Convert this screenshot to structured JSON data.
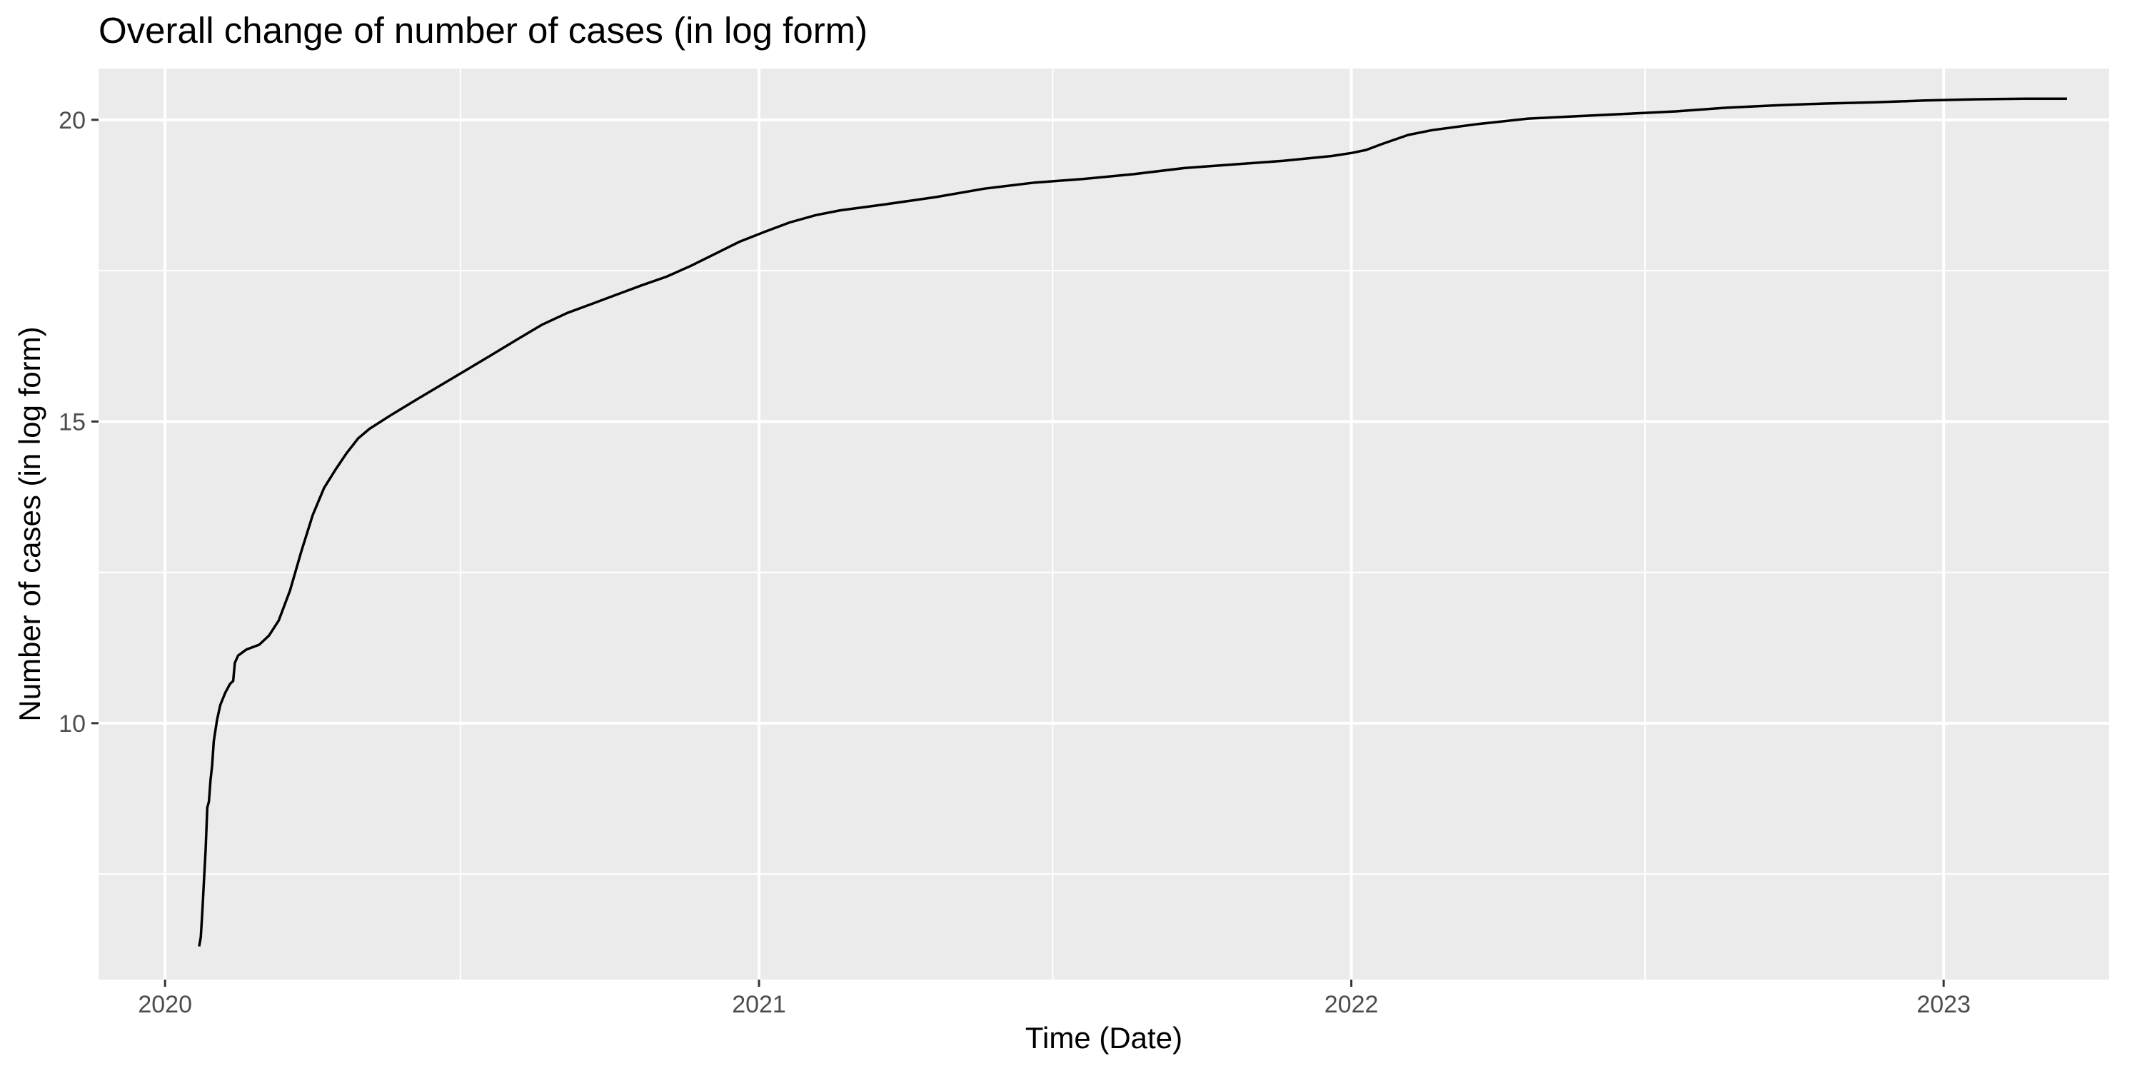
{
  "chart_data": {
    "type": "line",
    "title": "Overall change of number of cases (in log form)",
    "xlabel": "Time (Date)",
    "ylabel": "Number of cases (in log form)",
    "x_axis_type": "date",
    "xlim": [
      "2019-11-21",
      "2023-04-13"
    ],
    "ylim": [
      5.75,
      20.85
    ],
    "x_ticks": [
      {
        "value": "2020-01-01",
        "label": "2020"
      },
      {
        "value": "2021-01-01",
        "label": "2021"
      },
      {
        "value": "2022-01-01",
        "label": "2022"
      },
      {
        "value": "2023-01-01",
        "label": "2023"
      }
    ],
    "x_minor_gridlines": [
      "2020-07-01",
      "2021-07-01",
      "2022-07-01"
    ],
    "y_ticks": [
      {
        "value": 10,
        "label": "10"
      },
      {
        "value": 15,
        "label": "15"
      },
      {
        "value": 20,
        "label": "20"
      }
    ],
    "y_minor_gridlines": [
      7.5,
      12.5,
      17.5
    ],
    "grid": true,
    "legend": "none",
    "colors": {
      "panel": "#ebebeb",
      "grid": "#ffffff",
      "line": "#000000",
      "tick_text": "#4d4d4d",
      "tick_mark": "#333333"
    },
    "series": [
      {
        "points": [
          [
            "2020-01-22",
            6.3
          ],
          [
            "2020-01-23",
            6.45
          ],
          [
            "2020-01-24",
            6.9
          ],
          [
            "2020-01-25",
            7.4
          ],
          [
            "2020-01-26",
            7.9
          ],
          [
            "2020-01-27",
            8.6
          ],
          [
            "2020-01-28",
            8.7
          ],
          [
            "2020-01-29",
            9.05
          ],
          [
            "2020-01-30",
            9.3
          ],
          [
            "2020-01-31",
            9.7
          ],
          [
            "2020-02-02",
            10.05
          ],
          [
            "2020-02-04",
            10.3
          ],
          [
            "2020-02-07",
            10.5
          ],
          [
            "2020-02-10",
            10.65
          ],
          [
            "2020-02-12",
            10.7
          ],
          [
            "2020-02-13",
            11.0
          ],
          [
            "2020-02-15",
            11.12
          ],
          [
            "2020-02-20",
            11.22
          ],
          [
            "2020-02-28",
            11.3
          ],
          [
            "2020-03-05",
            11.45
          ],
          [
            "2020-03-11",
            11.7
          ],
          [
            "2020-03-18",
            12.2
          ],
          [
            "2020-03-25",
            12.85
          ],
          [
            "2020-04-01",
            13.45
          ],
          [
            "2020-04-08",
            13.9
          ],
          [
            "2020-04-15",
            14.2
          ],
          [
            "2020-04-22",
            14.48
          ],
          [
            "2020-04-29",
            14.72
          ],
          [
            "2020-05-06",
            14.88
          ],
          [
            "2020-05-20",
            15.12
          ],
          [
            "2020-06-05",
            15.38
          ],
          [
            "2020-06-20",
            15.62
          ],
          [
            "2020-07-05",
            15.86
          ],
          [
            "2020-07-20",
            16.1
          ],
          [
            "2020-08-05",
            16.36
          ],
          [
            "2020-08-20",
            16.6
          ],
          [
            "2020-09-05",
            16.8
          ],
          [
            "2020-09-20",
            16.95
          ],
          [
            "2020-10-05",
            17.1
          ],
          [
            "2020-10-20",
            17.25
          ],
          [
            "2020-11-05",
            17.4
          ],
          [
            "2020-11-20",
            17.58
          ],
          [
            "2020-12-05",
            17.78
          ],
          [
            "2020-12-20",
            17.98
          ],
          [
            "2021-01-05",
            18.15
          ],
          [
            "2021-01-20",
            18.3
          ],
          [
            "2021-02-05",
            18.42
          ],
          [
            "2021-02-20",
            18.5
          ],
          [
            "2021-03-20",
            18.6
          ],
          [
            "2021-04-20",
            18.72
          ],
          [
            "2021-05-20",
            18.86
          ],
          [
            "2021-06-20",
            18.96
          ],
          [
            "2021-07-20",
            19.02
          ],
          [
            "2021-08-20",
            19.1
          ],
          [
            "2021-09-20",
            19.2
          ],
          [
            "2021-10-20",
            19.26
          ],
          [
            "2021-11-20",
            19.32
          ],
          [
            "2021-12-20",
            19.4
          ],
          [
            "2022-01-01",
            19.45
          ],
          [
            "2022-01-10",
            19.5
          ],
          [
            "2022-01-20",
            19.6
          ],
          [
            "2022-02-05",
            19.75
          ],
          [
            "2022-02-20",
            19.83
          ],
          [
            "2022-03-20",
            19.93
          ],
          [
            "2022-04-20",
            20.02
          ],
          [
            "2022-05-20",
            20.06
          ],
          [
            "2022-06-20",
            20.1
          ],
          [
            "2022-07-20",
            20.14
          ],
          [
            "2022-08-20",
            20.2
          ],
          [
            "2022-09-20",
            20.24
          ],
          [
            "2022-10-20",
            20.27
          ],
          [
            "2022-11-20",
            20.29
          ],
          [
            "2022-12-20",
            20.32
          ],
          [
            "2023-01-20",
            20.34
          ],
          [
            "2023-02-20",
            20.35
          ],
          [
            "2023-03-18",
            20.35
          ]
        ]
      }
    ]
  }
}
